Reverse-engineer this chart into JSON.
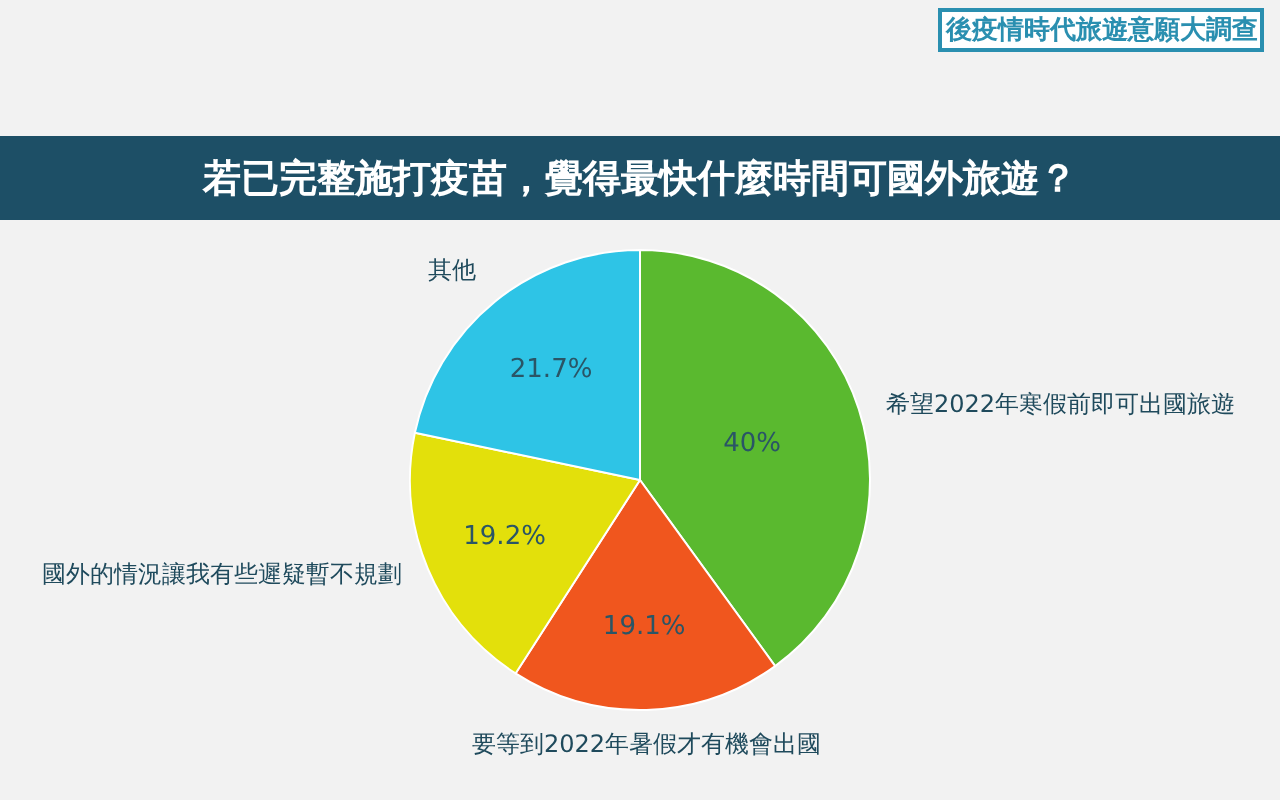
{
  "chart_data": {
    "type": "pie",
    "title": "若已完整施打疫苗，覺得最快什麼時間可國外旅遊？",
    "subtitle": "後疫情時代旅遊意願大調查",
    "categories": [
      "希望2022年寒假前即可出國旅遊",
      "要等到2022年暑假才有機會出國",
      "國外的情況讓我有些遲疑暫不規劃",
      "其他"
    ],
    "values": [
      40,
      19.1,
      19.2,
      21.7
    ],
    "colors": [
      "#5ab92f",
      "#f0561e",
      "#e3e00b",
      "#2ec4e6"
    ],
    "value_labels": [
      "40%",
      "19.1%",
      "19.2%",
      "21.7%"
    ],
    "legend": false
  }
}
